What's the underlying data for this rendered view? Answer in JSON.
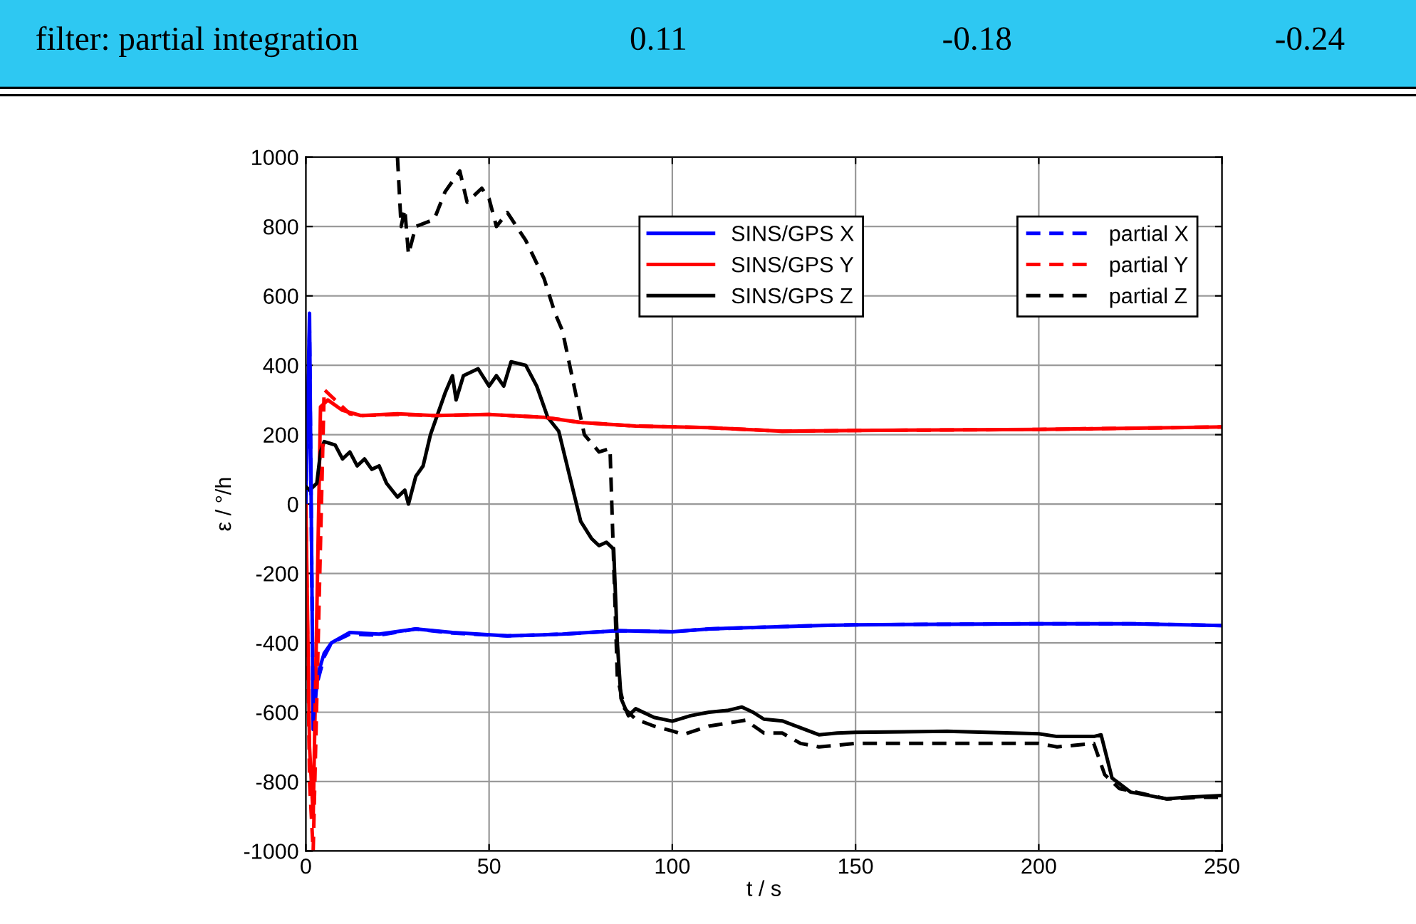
{
  "chart_data": {
    "type": "line",
    "xlabel": "t / s",
    "ylabel": "ε / °/h",
    "annotations": [
      "filter: partial integration",
      "0.11",
      "-0.18",
      "-0.24"
    ],
    "xlim": [
      0,
      250
    ],
    "ylim": [
      -1000,
      1000
    ],
    "xticks": [
      0,
      50,
      100,
      150,
      200,
      250
    ],
    "yticks": [
      -1000,
      -800,
      -600,
      -400,
      -200,
      0,
      200,
      400,
      600,
      800,
      1000
    ],
    "grid": true,
    "legend": "top right",
    "marker": "none",
    "series": [
      {
        "name": "SINS/GPS X",
        "color": "#0000ff",
        "line_style": "solid",
        "x": [
          0,
          1,
          2,
          3,
          5,
          7,
          12,
          20,
          30,
          40,
          55,
          70,
          85,
          100,
          110,
          140,
          150,
          200,
          225,
          250
        ],
        "values": [
          0,
          550,
          -650,
          -500,
          -430,
          -400,
          -370,
          -375,
          -360,
          -370,
          -380,
          -375,
          -365,
          -368,
          -360,
          -350,
          -348,
          -345,
          -345,
          -350
        ]
      },
      {
        "name": "SINS/GPS Y",
        "color": "#ff0000",
        "line_style": "solid",
        "x": [
          0,
          1,
          2,
          4,
          6,
          10,
          15,
          25,
          35,
          50,
          65,
          75,
          90,
          110,
          130,
          150,
          200,
          250
        ],
        "values": [
          0,
          -700,
          -900,
          280,
          300,
          270,
          255,
          260,
          255,
          258,
          250,
          235,
          225,
          220,
          210,
          212,
          215,
          222
        ]
      },
      {
        "name": "SINS/GPS Z",
        "color": "#000000",
        "line_style": "solid",
        "x": [
          0,
          1,
          3,
          4,
          5,
          8,
          10,
          12,
          14,
          16,
          18,
          20,
          22,
          25,
          27,
          28,
          30,
          32,
          34,
          36,
          38,
          40,
          41,
          43,
          47,
          50,
          52,
          54,
          56,
          60,
          63,
          66,
          69,
          72,
          75,
          78,
          80,
          82,
          84,
          85,
          86,
          88,
          90,
          95,
          100,
          105,
          110,
          115,
          119,
          122,
          125,
          130,
          135,
          140,
          145,
          150,
          175,
          200,
          205,
          215,
          217,
          220,
          225,
          235,
          240,
          250
        ],
        "values": [
          50,
          40,
          60,
          150,
          180,
          170,
          130,
          150,
          110,
          130,
          100,
          110,
          60,
          20,
          40,
          0,
          80,
          110,
          200,
          260,
          320,
          370,
          300,
          370,
          390,
          340,
          370,
          340,
          410,
          400,
          340,
          250,
          210,
          80,
          -50,
          -100,
          -120,
          -110,
          -130,
          -400,
          -560,
          -610,
          -590,
          -615,
          -626,
          -610,
          -600,
          -595,
          -585,
          -600,
          -620,
          -625,
          -645,
          -665,
          -660,
          -658,
          -655,
          -662,
          -670,
          -670,
          -665,
          -790,
          -830,
          -850,
          -845,
          -840
        ]
      },
      {
        "name": "partial X",
        "color": "#0000ff",
        "line_style": "dashed",
        "x": [
          0,
          1,
          2,
          3,
          5,
          7,
          12,
          20,
          30,
          40,
          55,
          70,
          85,
          100,
          110,
          140,
          150,
          200,
          225,
          250
        ],
        "values": [
          0,
          500,
          -620,
          -520,
          -440,
          -400,
          -375,
          -378,
          -360,
          -372,
          -380,
          -375,
          -365,
          -368,
          -360,
          -350,
          -348,
          -345,
          -345,
          -350
        ]
      },
      {
        "name": "partial Y",
        "color": "#ff0000",
        "line_style": "dashed",
        "x": [
          0,
          1,
          2,
          5,
          7,
          12,
          15,
          25,
          35,
          50,
          65,
          75,
          90,
          110,
          130,
          150,
          200,
          250
        ],
        "values": [
          0,
          -800,
          -1000,
          330,
          310,
          260,
          255,
          258,
          255,
          258,
          250,
          235,
          225,
          220,
          210,
          212,
          215,
          222
        ]
      },
      {
        "name": "partial Z",
        "color": "#000000",
        "line_style": "dashed",
        "x": [
          25,
          26,
          27,
          28,
          30,
          35,
          38,
          42,
          44,
          48,
          50,
          52,
          55,
          60,
          65,
          68,
          70,
          73,
          76,
          80,
          83,
          85,
          87,
          90,
          95,
          100,
          103,
          110,
          120,
          125,
          130,
          135,
          140,
          150,
          175,
          200,
          205,
          215,
          218,
          222,
          235,
          245,
          250
        ],
        "values": [
          1000,
          800,
          850,
          720,
          800,
          820,
          900,
          960,
          870,
          910,
          880,
          800,
          840,
          760,
          650,
          550,
          500,
          350,
          200,
          150,
          160,
          -500,
          -590,
          -620,
          -640,
          -654,
          -664,
          -640,
          -623,
          -660,
          -660,
          -690,
          -700,
          -690,
          -690,
          -690,
          -700,
          -690,
          -780,
          -820,
          -850,
          -845,
          -845
        ]
      }
    ]
  }
}
